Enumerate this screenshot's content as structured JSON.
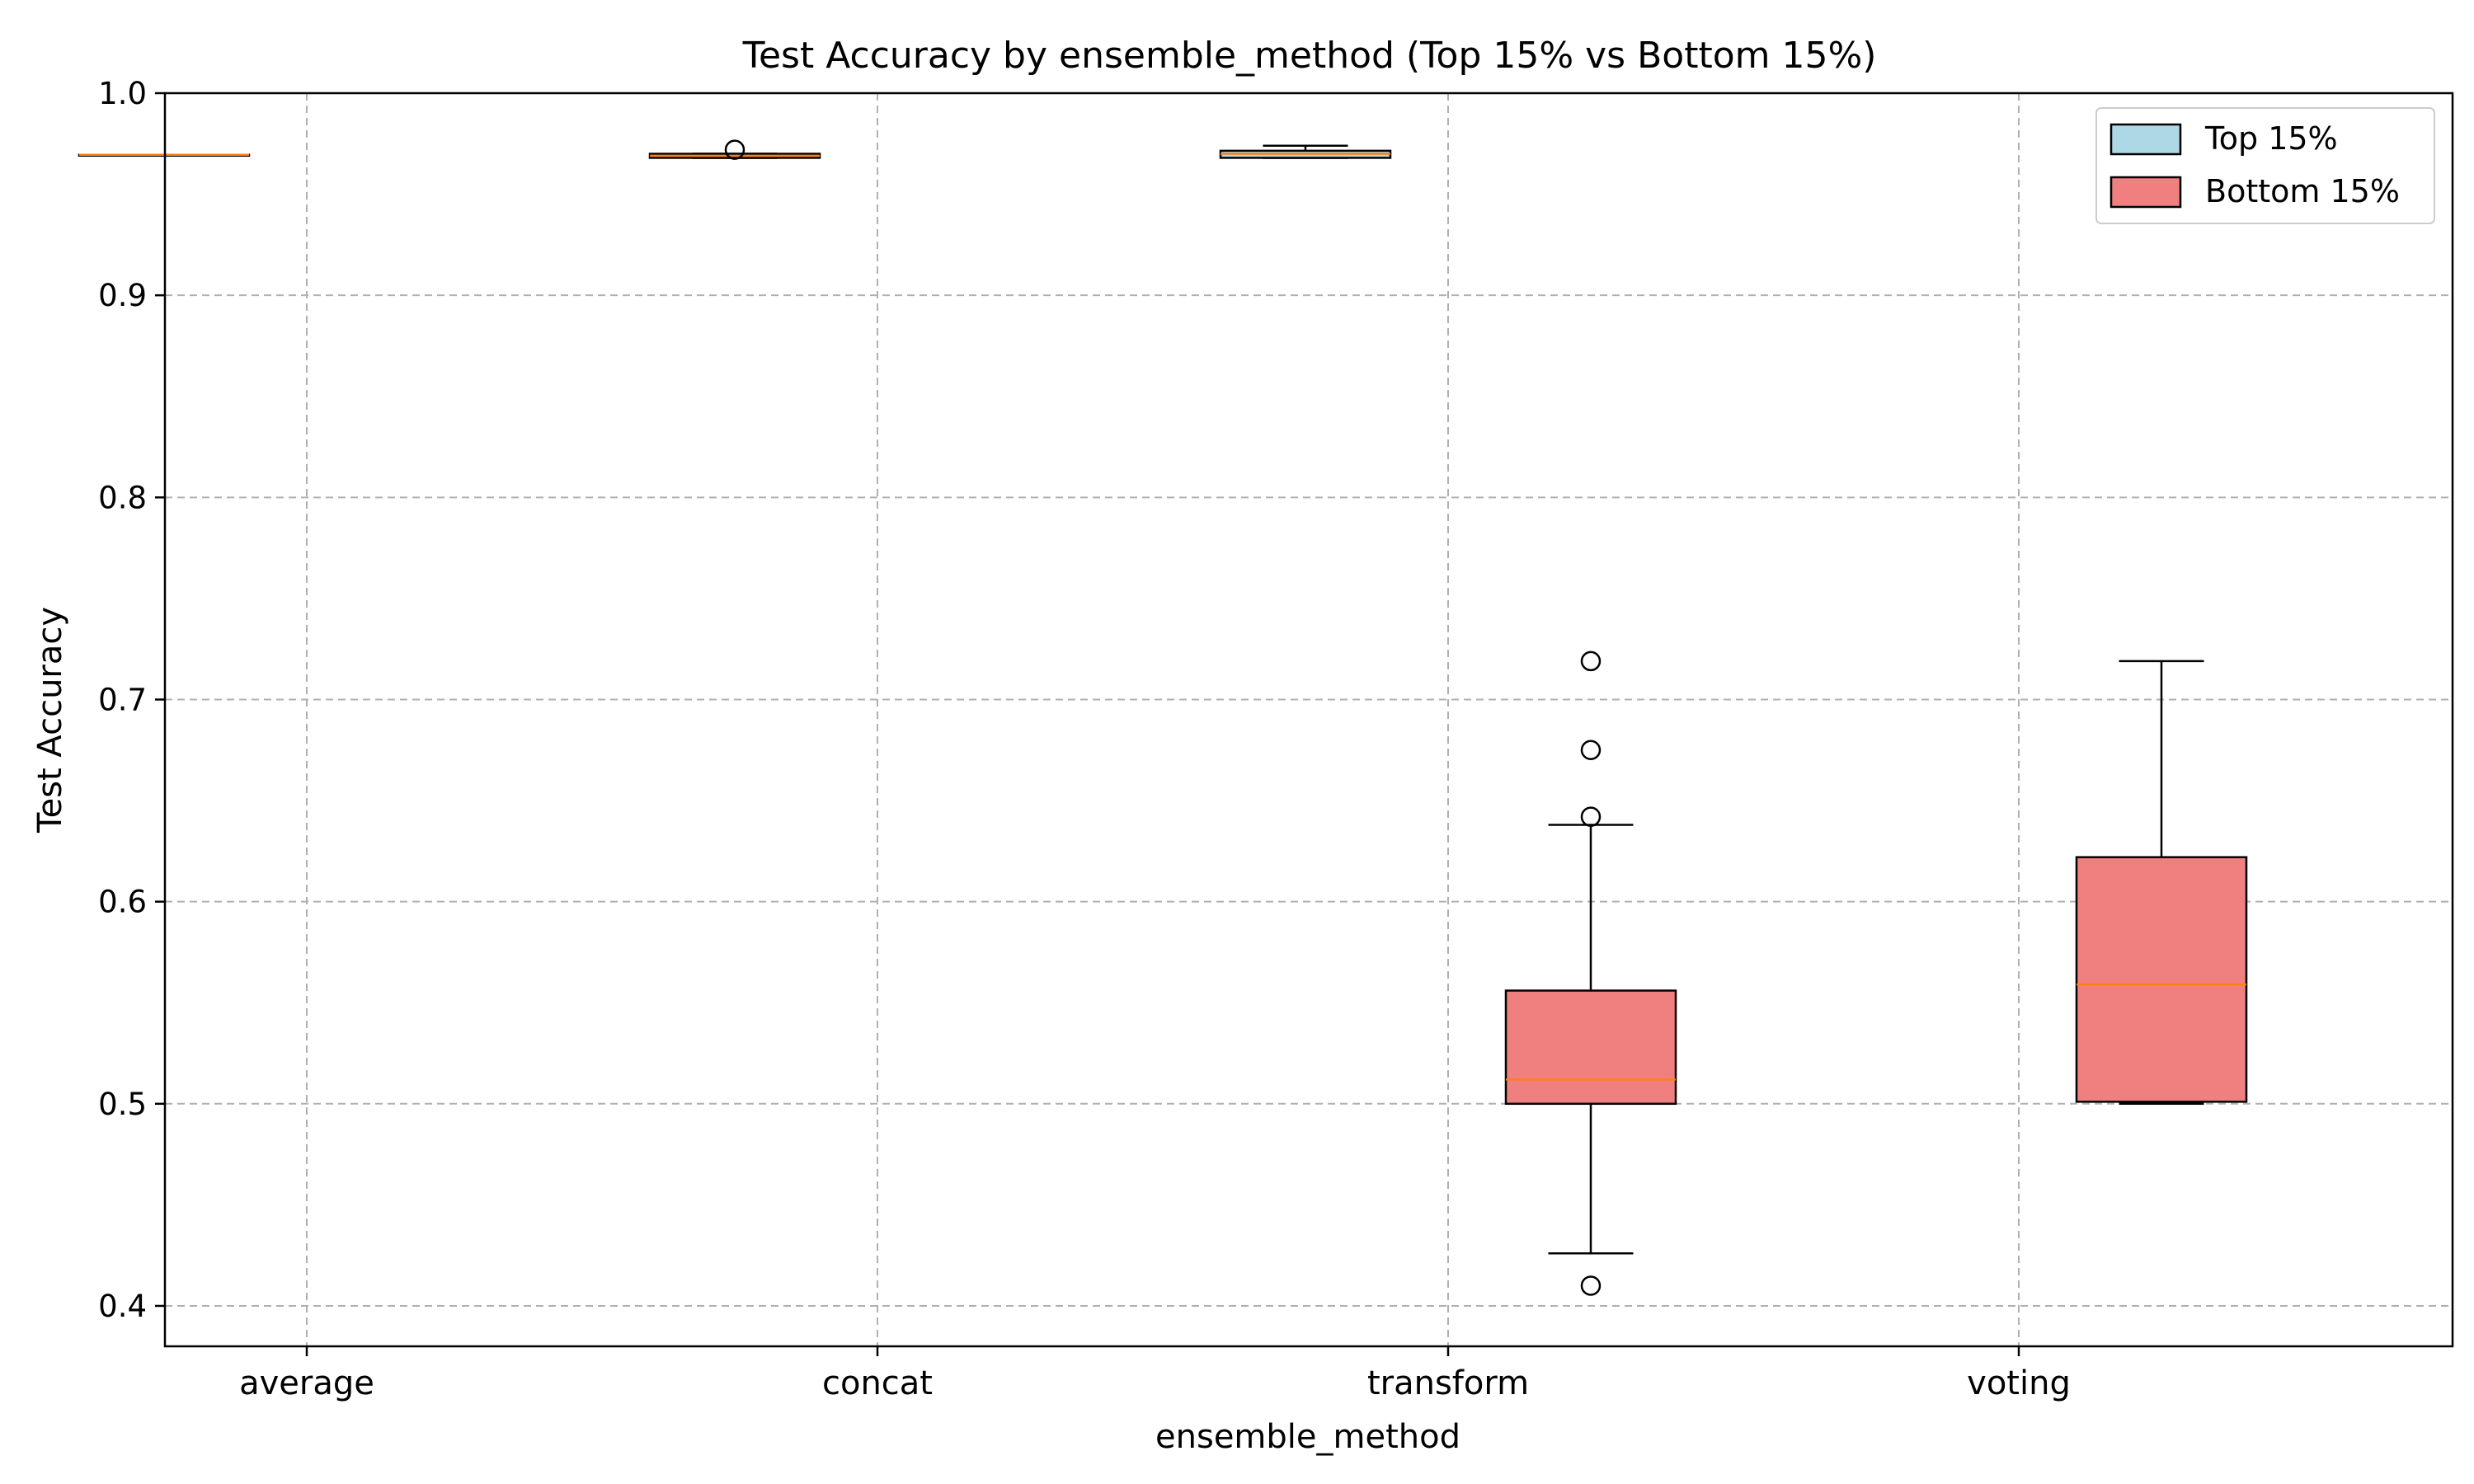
{
  "chart_data": {
    "type": "box",
    "title": "Test Accuracy by ensemble_method (Top 15% vs Bottom 15%)",
    "xlabel": "ensemble_method",
    "ylabel": "Test Accuracy",
    "categories": [
      "average",
      "concat",
      "transform",
      "voting"
    ],
    "ylim": [
      0.38,
      1.0
    ],
    "yticks": [
      0.4,
      0.5,
      0.6,
      0.7,
      0.8,
      0.9,
      1.0
    ],
    "ytick_labels": [
      "0.4",
      "0.5",
      "0.6",
      "0.7",
      "0.8",
      "0.9",
      "1.0"
    ],
    "grid": true,
    "legend_position": "top-right",
    "series": [
      {
        "name": "Top 15%",
        "color": "#add8e6",
        "boxes": [
          {
            "category": "average",
            "whisker_low": 0.9695,
            "q1": 0.9695,
            "median": 0.9695,
            "q3": 0.9695,
            "whisker_high": 0.9695,
            "outliers": []
          },
          {
            "category": "concat",
            "whisker_low": 0.968,
            "q1": 0.968,
            "median": 0.969,
            "q3": 0.97,
            "whisker_high": 0.97,
            "outliers": [
              0.972
            ]
          },
          {
            "category": "transform",
            "whisker_low": 0.968,
            "q1": 0.968,
            "median": 0.97,
            "q3": 0.9715,
            "whisker_high": 0.974,
            "outliers": []
          }
        ]
      },
      {
        "name": "Bottom 15%",
        "color": "#f08080",
        "boxes": [
          {
            "category": "transform",
            "whisker_low": 0.426,
            "q1": 0.5,
            "median": 0.512,
            "q3": 0.556,
            "whisker_high": 0.638,
            "outliers": [
              0.41,
              0.642,
              0.675,
              0.719
            ]
          },
          {
            "category": "voting",
            "whisker_low": 0.5,
            "q1": 0.501,
            "median": 0.559,
            "q3": 0.622,
            "whisker_high": 0.719,
            "outliers": []
          }
        ]
      }
    ],
    "median_color": "#ff7f0e"
  }
}
